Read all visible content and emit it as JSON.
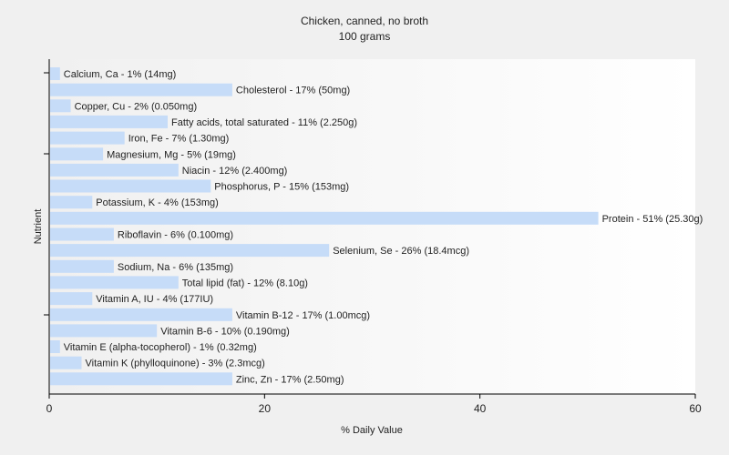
{
  "chart_data": {
    "type": "bar",
    "orientation": "horizontal",
    "title": "Chicken, canned, no broth",
    "subtitle": "100 grams",
    "xlabel": "% Daily Value",
    "ylabel": "Nutrient",
    "xlim": [
      0,
      60
    ],
    "xticks": [
      0,
      20,
      40,
      60
    ],
    "grid": false,
    "colors": {
      "bar": "#c6dcf8",
      "axis": "#000000",
      "plot_bg_right": "#ffffff",
      "plot_bg_left": "#f0f0f0"
    },
    "categories": [
      "Calcium, Ca",
      "Cholesterol",
      "Copper, Cu",
      "Fatty acids, total saturated",
      "Iron, Fe",
      "Magnesium, Mg",
      "Niacin",
      "Phosphorus, P",
      "Potassium, K",
      "Protein",
      "Riboflavin",
      "Selenium, Se",
      "Sodium, Na",
      "Total lipid (fat)",
      "Vitamin A, IU",
      "Vitamin B-12",
      "Vitamin B-6",
      "Vitamin E (alpha-tocopherol)",
      "Vitamin K (phylloquinone)",
      "Zinc, Zn"
    ],
    "values": [
      1,
      17,
      2,
      11,
      7,
      5,
      12,
      15,
      4,
      51,
      6,
      26,
      6,
      12,
      4,
      17,
      10,
      1,
      3,
      17
    ],
    "labels": [
      "Calcium, Ca - 1% (14mg)",
      "Cholesterol - 17% (50mg)",
      "Copper, Cu - 2% (0.050mg)",
      "Fatty acids, total saturated - 11% (2.250g)",
      "Iron, Fe - 7% (1.30mg)",
      "Magnesium, Mg - 5% (19mg)",
      "Niacin - 12% (2.400mg)",
      "Phosphorus, P - 15% (153mg)",
      "Potassium, K - 4% (153mg)",
      "Protein - 51% (25.30g)",
      "Riboflavin - 6% (0.100mg)",
      "Selenium, Se - 26% (18.4mcg)",
      "Sodium, Na - 6% (135mg)",
      "Total lipid (fat) - 12% (8.10g)",
      "Vitamin A, IU - 4% (177IU)",
      "Vitamin B-12 - 17% (1.00mcg)",
      "Vitamin B-6 - 10% (0.190mg)",
      "Vitamin E (alpha-tocopherol) - 1% (0.32mg)",
      "Vitamin K (phylloquinone) - 3% (2.3mcg)",
      "Zinc, Zn - 17% (2.50mg)"
    ]
  }
}
